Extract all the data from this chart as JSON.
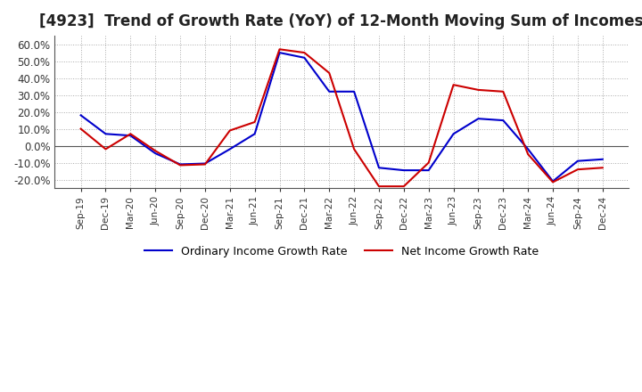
{
  "title": "[4923]  Trend of Growth Rate (YoY) of 12-Month Moving Sum of Incomes",
  "title_fontsize": 12,
  "background_color": "#ffffff",
  "grid_color": "#aaaaaa",
  "ylim": [
    -25,
    65
  ],
  "yticks": [
    -20,
    -10,
    0,
    10,
    20,
    30,
    40,
    50,
    60
  ],
  "legend_labels": [
    "Ordinary Income Growth Rate",
    "Net Income Growth Rate"
  ],
  "legend_colors": [
    "#0000cc",
    "#cc0000"
  ],
  "x_labels": [
    "Sep-19",
    "Dec-19",
    "Mar-20",
    "Jun-20",
    "Sep-20",
    "Dec-20",
    "Mar-21",
    "Jun-21",
    "Sep-21",
    "Dec-21",
    "Mar-22",
    "Jun-22",
    "Sep-22",
    "Dec-22",
    "Mar-23",
    "Jun-23",
    "Sep-23",
    "Dec-23",
    "Mar-24",
    "Jun-24",
    "Sep-24",
    "Dec-24"
  ],
  "ordinary_income_growth": [
    18.0,
    7.0,
    6.0,
    -4.5,
    -11.0,
    -10.5,
    -2.0,
    7.0,
    55.0,
    52.0,
    32.0,
    32.0,
    -13.0,
    -14.5,
    -14.5,
    7.0,
    16.0,
    15.0,
    -2.0,
    -21.0,
    -9.0,
    -8.0
  ],
  "net_income_growth": [
    10.0,
    -2.0,
    7.0,
    -3.0,
    -11.5,
    -11.0,
    9.0,
    14.0,
    57.0,
    55.0,
    43.0,
    -2.0,
    -24.0,
    -24.0,
    -10.0,
    36.0,
    33.0,
    32.0,
    -5.0,
    -21.5,
    -14.0,
    -13.0
  ]
}
